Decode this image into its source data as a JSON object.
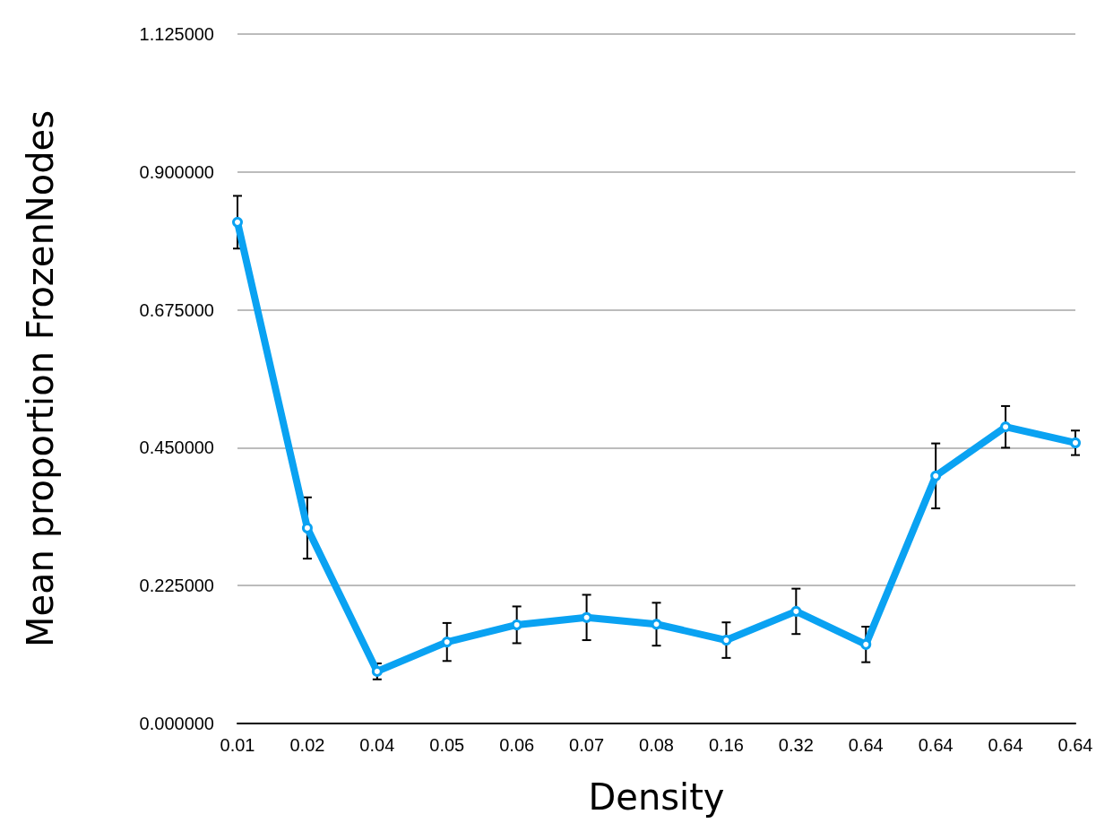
{
  "chart_data": {
    "type": "line",
    "xlabel": "Density",
    "ylabel": "Mean proportion FrozenNodes",
    "categories": [
      "0.01",
      "0.02",
      "0.04",
      "0.05",
      "0.06",
      "0.07",
      "0.08",
      "0.16",
      "0.32",
      "0.64",
      "0.64",
      "0.64",
      "0.64"
    ],
    "series": [
      {
        "color": "#0aa2f2",
        "values": [
          0.818,
          0.319,
          0.085,
          0.133,
          0.161,
          0.173,
          0.162,
          0.136,
          0.183,
          0.129,
          0.404,
          0.484,
          0.458
        ],
        "errors": [
          0.043,
          0.05,
          0.013,
          0.031,
          0.03,
          0.037,
          0.035,
          0.029,
          0.037,
          0.029,
          0.053,
          0.034,
          0.02
        ]
      }
    ],
    "ylim": [
      0,
      1.125
    ],
    "yticks": [
      {
        "value": 0,
        "label": "0.000000"
      },
      {
        "value": 0.225,
        "label": "0.225000"
      },
      {
        "value": 0.45,
        "label": "0.450000"
      },
      {
        "value": 0.675,
        "label": "0.675000"
      },
      {
        "value": 0.9,
        "label": "0.900000"
      },
      {
        "value": 1.125,
        "label": "1.125000"
      }
    ],
    "grid": "y",
    "marker": "circle",
    "line_style": "solid"
  }
}
